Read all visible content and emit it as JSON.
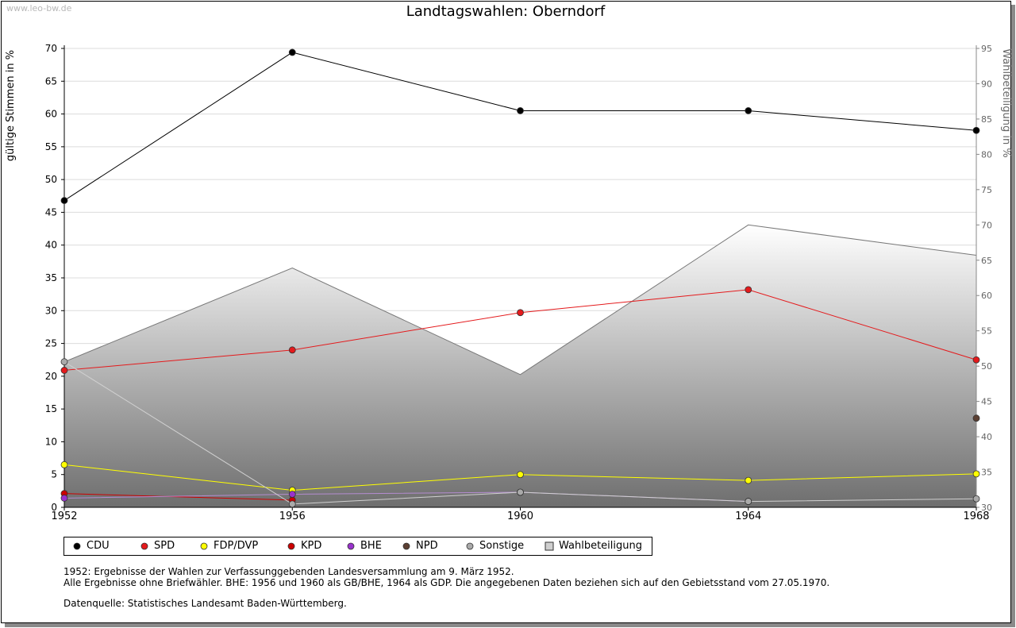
{
  "watermark": "www.leo-bw.de",
  "chart_data": {
    "type": "line",
    "title": "Landtagswahlen: Oberndorf",
    "ylabel": "gültige Stimmen in %",
    "y2label": "Wahlbeteiligung in %",
    "x": [
      "1952",
      "1956",
      "1960",
      "1964",
      "1968"
    ],
    "ylim": [
      0,
      70
    ],
    "yticks": [
      0,
      5,
      10,
      15,
      20,
      25,
      30,
      35,
      40,
      45,
      50,
      55,
      60,
      65,
      70
    ],
    "y2lim": [
      30,
      95
    ],
    "y2ticks": [
      30,
      35,
      40,
      45,
      50,
      55,
      60,
      65,
      70,
      75,
      80,
      85,
      90,
      95
    ],
    "grid": true,
    "legend_position": "bottom",
    "series": [
      {
        "name": "CDU",
        "color": "#000000",
        "values": [
          46.8,
          69.4,
          60.5,
          60.5,
          57.5
        ]
      },
      {
        "name": "SPD",
        "color": "#e41a1c",
        "values": [
          20.9,
          24.0,
          29.7,
          33.2,
          22.5
        ]
      },
      {
        "name": "FDP/DVP",
        "color": "#ffff00",
        "values": [
          6.5,
          2.6,
          5.0,
          4.1,
          5.1
        ]
      },
      {
        "name": "KPD",
        "color": "#cc0000",
        "values": [
          2.1,
          1.1,
          null,
          null,
          null
        ]
      },
      {
        "name": "BHE",
        "color": "#9932cc",
        "values": [
          1.4,
          2.0,
          2.3,
          0.9,
          null
        ]
      },
      {
        "name": "NPD",
        "color": "#5c4033",
        "values": [
          null,
          null,
          null,
          null,
          13.6
        ]
      },
      {
        "name": "Sonstige",
        "color": "#aaaaaa",
        "values": [
          22.2,
          0.5,
          2.3,
          0.9,
          1.3
        ]
      },
      {
        "name": "Wahlbeteiligung",
        "axis": "right",
        "area": true,
        "values": [
          50.6,
          63.9,
          48.8,
          70.0,
          65.7
        ]
      }
    ]
  },
  "notes": [
    "1952: Ergebnisse der Wahlen zur Verfassunggebenden Landesversammlung am 9. März 1952.",
    "Alle Ergebnisse ohne Briefwähler. BHE: 1956 und 1960 als GB/BHE, 1964 als GDP. Die angegebenen Daten beziehen sich auf den Gebietsstand vom 27.05.1970.",
    "Datenquelle: Statistisches Landesamt Baden-Württemberg."
  ]
}
